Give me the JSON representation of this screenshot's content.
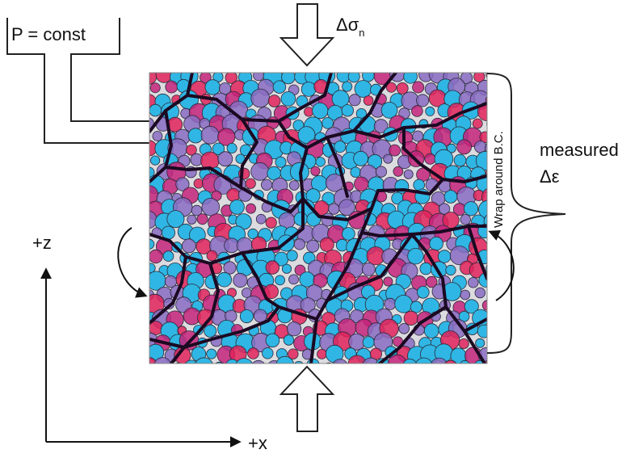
{
  "labels": {
    "pressure": "P = const",
    "stress_main": "Δσ",
    "stress_sub": "n",
    "measured_line1": "measured",
    "measured_line2": "Δε",
    "boundary": "Wrap around B.C.",
    "axis_z": "+z",
    "axis_x": "+x"
  },
  "colors": {
    "cyan_particle": "#2fb6e4",
    "purple_particle": "#8a6cc2",
    "magenta_chain": "#c4237a",
    "red_chain": "#e0235a",
    "force_chain": "#1b0a22",
    "background_speckle": "#dcdce0",
    "arrow_line": "#222222"
  },
  "icons": [
    "compression-arrow-down-icon",
    "compression-arrow-up-icon",
    "wrap-arrow-left-icon",
    "wrap-arrow-right-icon",
    "measurement-brace-icon",
    "z-axis-arrow-icon",
    "x-axis-arrow-icon"
  ]
}
